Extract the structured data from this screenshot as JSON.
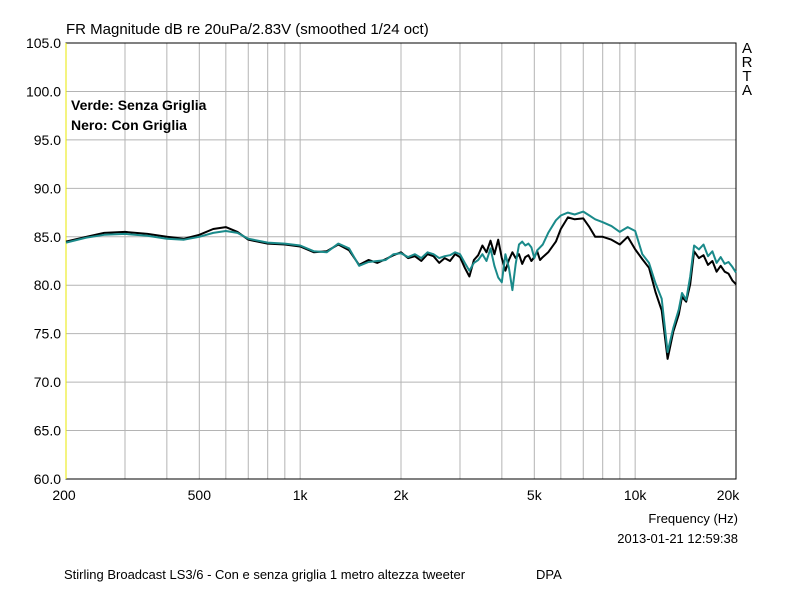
{
  "chart_data": {
    "type": "line",
    "title": "FR Magnitude dB re 20uPa/2.83V (smoothed 1/24 oct)",
    "xlabel": "Frequency (Hz)",
    "ylabel": "",
    "xscale": "log",
    "xlim": [
      200,
      20000
    ],
    "ylim": [
      60,
      105
    ],
    "grid": true,
    "y_ticks": [
      "60.0",
      "65.0",
      "70.0",
      "75.0",
      "80.0",
      "85.0",
      "90.0",
      "95.0",
      "100.0",
      "105.0"
    ],
    "x_ticks": [
      {
        "value": 200,
        "label": "200"
      },
      {
        "value": 500,
        "label": "500"
      },
      {
        "value": 1000,
        "label": "1k"
      },
      {
        "value": 2000,
        "label": "2k"
      },
      {
        "value": 5000,
        "label": "5k"
      },
      {
        "value": 10000,
        "label": "10k"
      },
      {
        "value": 20000,
        "label": "20k"
      }
    ],
    "annotations": [
      "Verde: Senza Griglia",
      "Nero: Con Griglia"
    ],
    "series": [
      {
        "color": "#000000",
        "x": [
          200,
          230,
          260,
          300,
          350,
          400,
          450,
          500,
          550,
          600,
          650,
          700,
          800,
          900,
          1000,
          1100,
          1200,
          1300,
          1400,
          1500,
          1600,
          1700,
          1800,
          1900,
          2000,
          2100,
          2200,
          2300,
          2400,
          2500,
          2600,
          2700,
          2800,
          2900,
          3000,
          3100,
          3200,
          3300,
          3400,
          3500,
          3600,
          3700,
          3800,
          3900,
          4000,
          4100,
          4200,
          4300,
          4400,
          4500,
          4600,
          4700,
          4800,
          4900,
          5000,
          5100,
          5200,
          5300,
          5500,
          5800,
          6000,
          6300,
          6600,
          7000,
          7300,
          7600,
          8000,
          8500,
          9000,
          9500,
          10000,
          10500,
          11000,
          11500,
          12000,
          12500,
          13000,
          13500,
          13800,
          14200,
          14600,
          15000,
          15500,
          16000,
          16500,
          17000,
          17500,
          18000,
          18500,
          19000,
          19500,
          20000
        ],
        "y": [
          84.5,
          85.0,
          85.4,
          85.5,
          85.3,
          85.0,
          84.8,
          85.2,
          85.8,
          86.0,
          85.5,
          84.7,
          84.3,
          84.2,
          84.0,
          83.4,
          83.5,
          84.2,
          83.6,
          82.1,
          82.6,
          82.3,
          82.7,
          83.1,
          83.4,
          82.8,
          83.0,
          82.5,
          83.2,
          83.0,
          82.3,
          82.8,
          82.5,
          83.2,
          82.9,
          81.8,
          80.9,
          82.6,
          83.1,
          84.1,
          83.4,
          84.6,
          83.2,
          84.7,
          82.8,
          81.5,
          82.6,
          83.4,
          82.8,
          83.2,
          82.2,
          82.9,
          83.1,
          82.5,
          82.9,
          83.5,
          82.6,
          82.9,
          83.4,
          84.5,
          85.8,
          87.0,
          86.8,
          86.9,
          86.0,
          85.0,
          85.0,
          84.7,
          84.2,
          85.0,
          83.7,
          82.7,
          81.8,
          79.3,
          77.4,
          72.4,
          75.2,
          77.0,
          78.8,
          78.3,
          80.1,
          83.5,
          82.8,
          83.1,
          82.1,
          82.5,
          81.4,
          82.0,
          81.4,
          81.2,
          80.5,
          80.1
        ]
      },
      {
        "color": "#1a8a8a",
        "x": [
          200,
          230,
          260,
          300,
          350,
          400,
          450,
          500,
          550,
          600,
          650,
          700,
          800,
          900,
          1000,
          1100,
          1200,
          1300,
          1400,
          1500,
          1600,
          1700,
          1800,
          1900,
          2000,
          2100,
          2200,
          2300,
          2400,
          2500,
          2600,
          2700,
          2800,
          2900,
          3000,
          3100,
          3200,
          3300,
          3400,
          3500,
          3600,
          3700,
          3800,
          3900,
          4000,
          4100,
          4200,
          4300,
          4400,
          4500,
          4600,
          4700,
          4800,
          4900,
          5000,
          5100,
          5200,
          5300,
          5500,
          5800,
          6000,
          6300,
          6600,
          7000,
          7300,
          7600,
          8000,
          8500,
          9000,
          9500,
          10000,
          10500,
          11000,
          11500,
          12000,
          12500,
          13000,
          13500,
          13800,
          14200,
          14600,
          15000,
          15500,
          16000,
          16500,
          17000,
          17500,
          18000,
          18500,
          19000,
          19500,
          20000
        ],
        "y": [
          84.4,
          84.9,
          85.2,
          85.3,
          85.1,
          84.8,
          84.7,
          85.0,
          85.4,
          85.6,
          85.4,
          84.8,
          84.4,
          84.3,
          84.1,
          83.5,
          83.4,
          84.3,
          83.8,
          82.0,
          82.4,
          82.5,
          82.6,
          83.2,
          83.3,
          82.9,
          83.2,
          82.8,
          83.4,
          83.2,
          82.8,
          83.0,
          83.1,
          83.4,
          83.2,
          82.3,
          81.5,
          82.3,
          82.6,
          83.2,
          82.5,
          83.8,
          82.0,
          80.8,
          80.3,
          83.2,
          81.8,
          79.5,
          82.2,
          84.2,
          84.5,
          84.1,
          84.3,
          83.9,
          82.8,
          83.6,
          83.9,
          84.2,
          85.4,
          86.7,
          87.2,
          87.5,
          87.3,
          87.6,
          87.2,
          86.8,
          86.5,
          86.1,
          85.5,
          86.0,
          85.6,
          83.2,
          82.3,
          80.2,
          78.6,
          73.1,
          75.6,
          77.5,
          79.2,
          78.5,
          80.9,
          84.1,
          83.7,
          84.2,
          83.0,
          83.5,
          82.3,
          82.9,
          82.2,
          82.4,
          81.9,
          81.3
        ]
      }
    ]
  },
  "footer": {
    "timestamp": "2013-01-21  12:59:38",
    "caption": "Stirling Broadcast LS3/6 - Con e senza griglia 1 metro altezza tweeter",
    "brand": "DPA"
  },
  "watermark": [
    "A",
    "R",
    "T",
    "A"
  ]
}
